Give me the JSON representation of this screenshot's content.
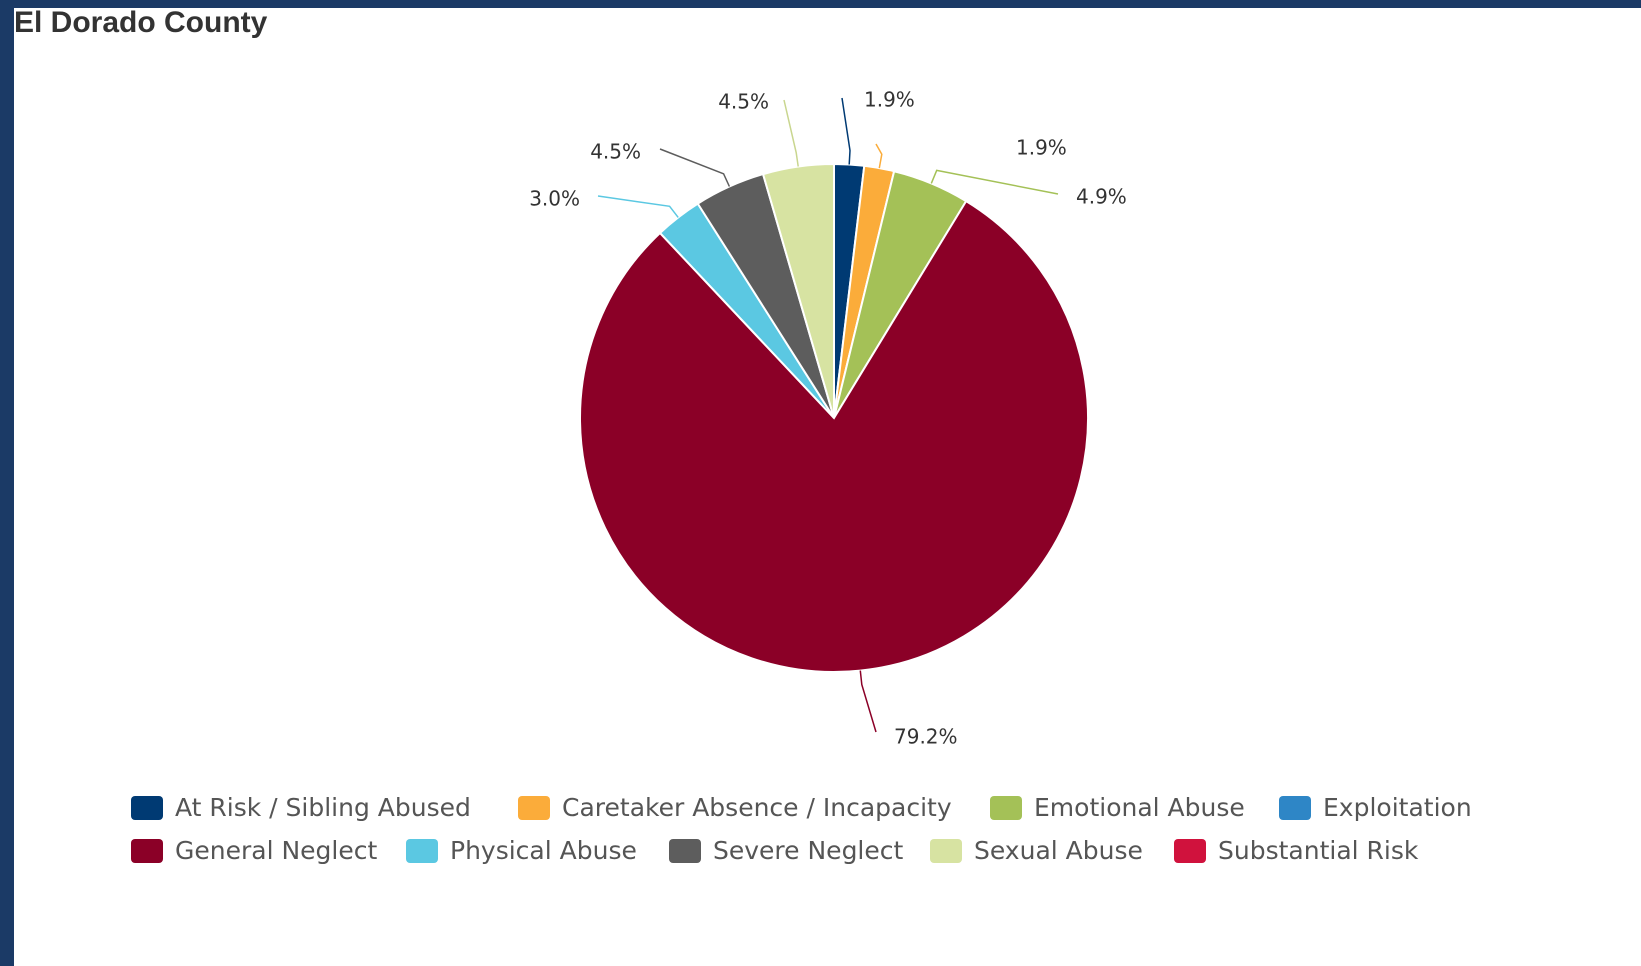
{
  "title": "El Dorado County",
  "chart_data": {
    "type": "pie",
    "title": "",
    "slices": [
      {
        "name": "At Risk / Sibling Abused",
        "value": 1.9,
        "label": "1.9%",
        "color": "#003a73"
      },
      {
        "name": "Caretaker Absence / Incapacity",
        "value": 1.9,
        "label": "1.9%",
        "color": "#fbac3a"
      },
      {
        "name": "Emotional Abuse",
        "value": 4.9,
        "label": "4.9%",
        "color": "#a4c157"
      },
      {
        "name": "General Neglect",
        "value": 79.2,
        "label": "79.2%",
        "color": "#8b0027"
      },
      {
        "name": "Physical Abuse",
        "value": 3.0,
        "label": "3.0%",
        "color": "#5bc8e2"
      },
      {
        "name": "Severe Neglect",
        "value": 4.5,
        "label": "4.5%",
        "color": "#5d5d5d"
      },
      {
        "name": "Sexual Abuse",
        "value": 4.5,
        "label": "4.5%",
        "color": "#d7e3a2"
      }
    ],
    "legend": [
      {
        "name": "At Risk / Sibling Abused",
        "color": "#003a73"
      },
      {
        "name": "Caretaker Absence / Incapacity",
        "color": "#fbac3a"
      },
      {
        "name": "Emotional Abuse",
        "color": "#a4c157"
      },
      {
        "name": "Exploitation",
        "color": "#2e86c6"
      },
      {
        "name": "General Neglect",
        "color": "#8b0027"
      },
      {
        "name": "Physical Abuse",
        "color": "#5bc8e2"
      },
      {
        "name": "Severe Neglect",
        "color": "#5d5d5d"
      },
      {
        "name": "Sexual Abuse",
        "color": "#d7e3a2"
      },
      {
        "name": "Substantial Risk",
        "color": "#d0123d"
      }
    ],
    "legend_position": "bottom"
  }
}
